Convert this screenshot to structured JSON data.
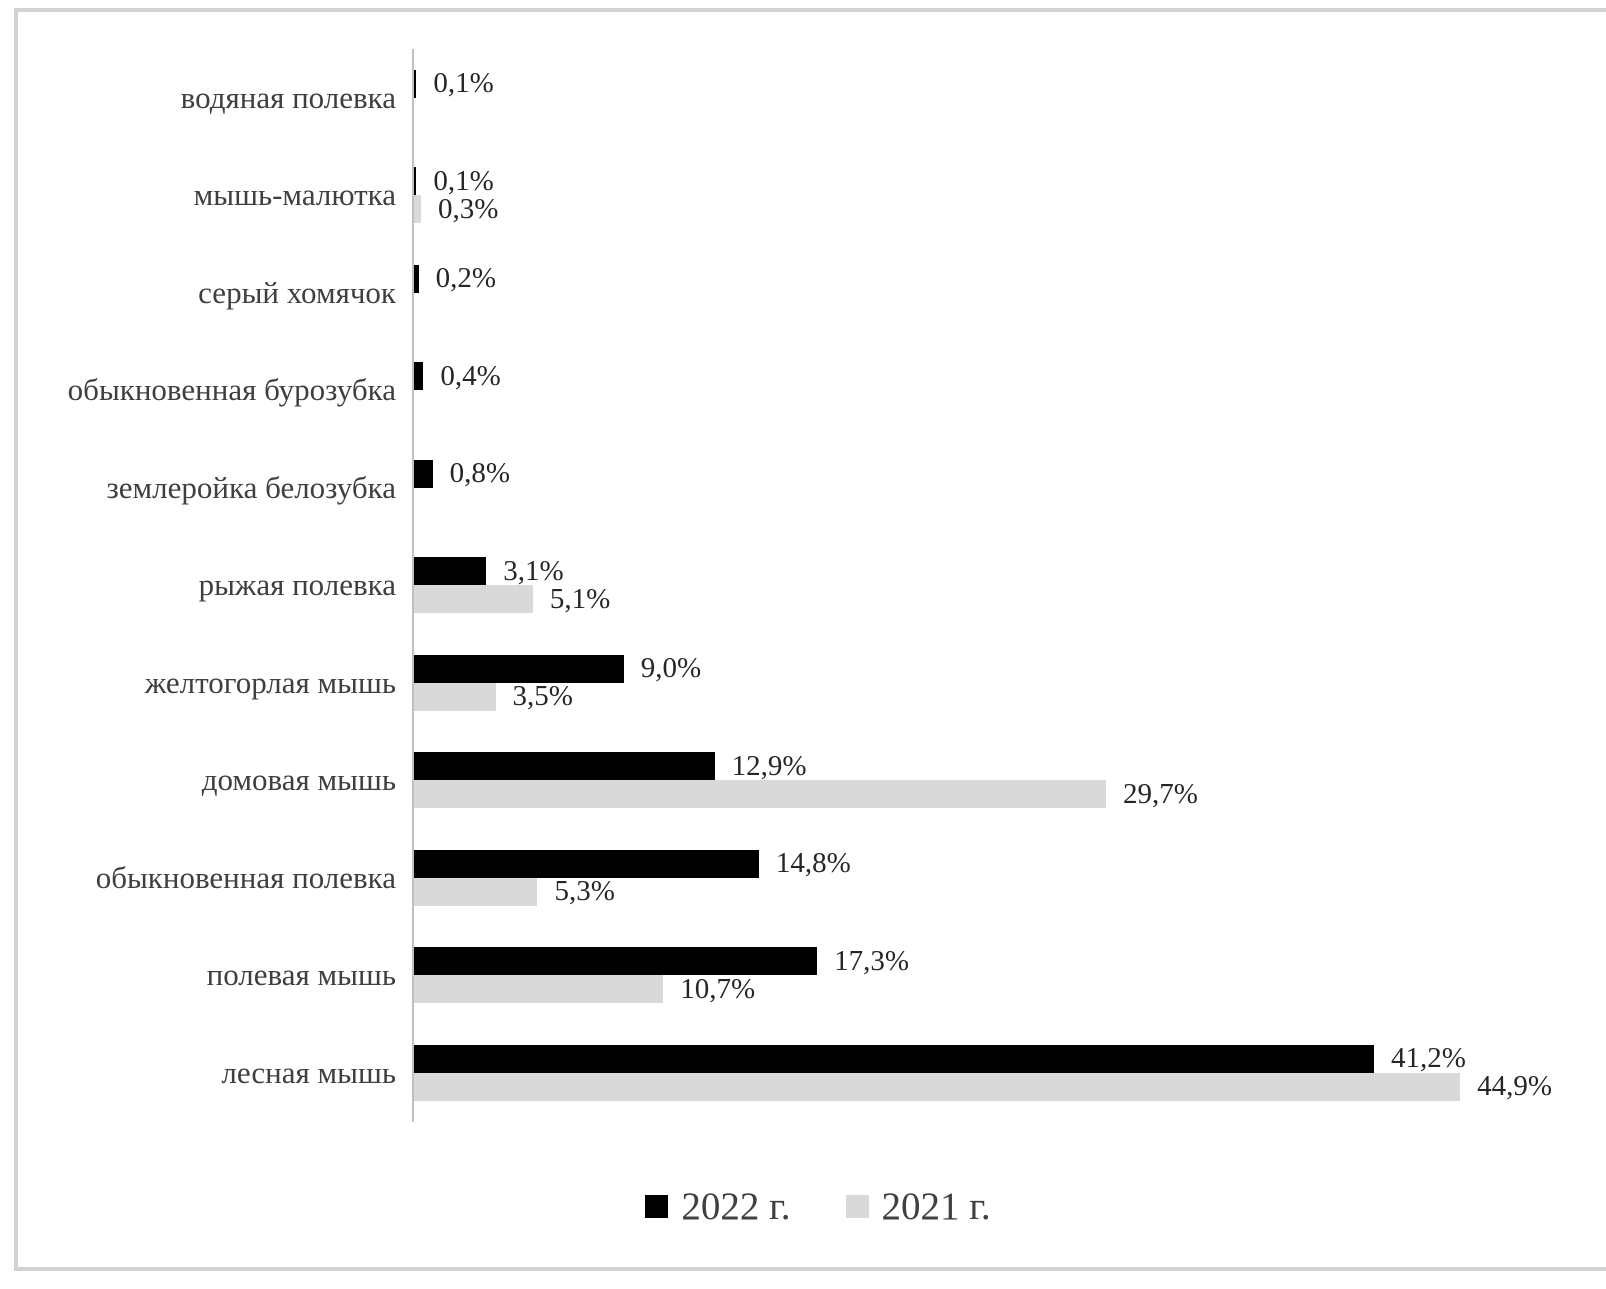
{
  "chart_data": {
    "type": "bar",
    "orientation": "horizontal",
    "title": "",
    "xlabel": "",
    "ylabel": "",
    "xlim": [
      0,
      45.5
    ],
    "grid": false,
    "legend_position": "bottom",
    "value_suffix": "%",
    "categories": [
      "водяная полевка",
      "мышь-малютка",
      "серый хомячок",
      "обыкновенная бурозубка",
      "землеройка белозубка",
      "рыжая полевка",
      "желтогорлая мышь",
      "домовая мышь",
      "обыкновенная полевка",
      "полевая мышь",
      "лесная мышь"
    ],
    "series": [
      {
        "name": "2022 г.",
        "color": "#000000",
        "values": [
          0.1,
          0.1,
          0.2,
          0.4,
          0.8,
          3.1,
          9.0,
          12.9,
          14.8,
          17.3,
          41.2
        ],
        "labels": [
          "0,1%",
          "0,1%",
          "0,2%",
          "0,4%",
          "0,8%",
          "3,1%",
          "9,0%",
          "12,9%",
          "14,8%",
          "17,3%",
          "41,2%"
        ]
      },
      {
        "name": "2021 г.",
        "color": "#d9d9d9",
        "values": [
          null,
          0.3,
          null,
          null,
          null,
          5.1,
          3.5,
          29.7,
          5.3,
          10.7,
          44.9
        ],
        "labels": [
          null,
          "0,3%",
          null,
          null,
          null,
          "5,1%",
          "3,5%",
          "29,7%",
          "5,3%",
          "10,7%",
          "44,9%"
        ]
      }
    ]
  },
  "colors": {
    "bar_2022": "#000000",
    "bar_2021": "#d9d9d9",
    "axis_line": "#c0c0c0",
    "frame_border": "#d2d2d2",
    "category_text": "#3f3f3f",
    "value_text": "#262626",
    "legend_text": "#404040"
  }
}
